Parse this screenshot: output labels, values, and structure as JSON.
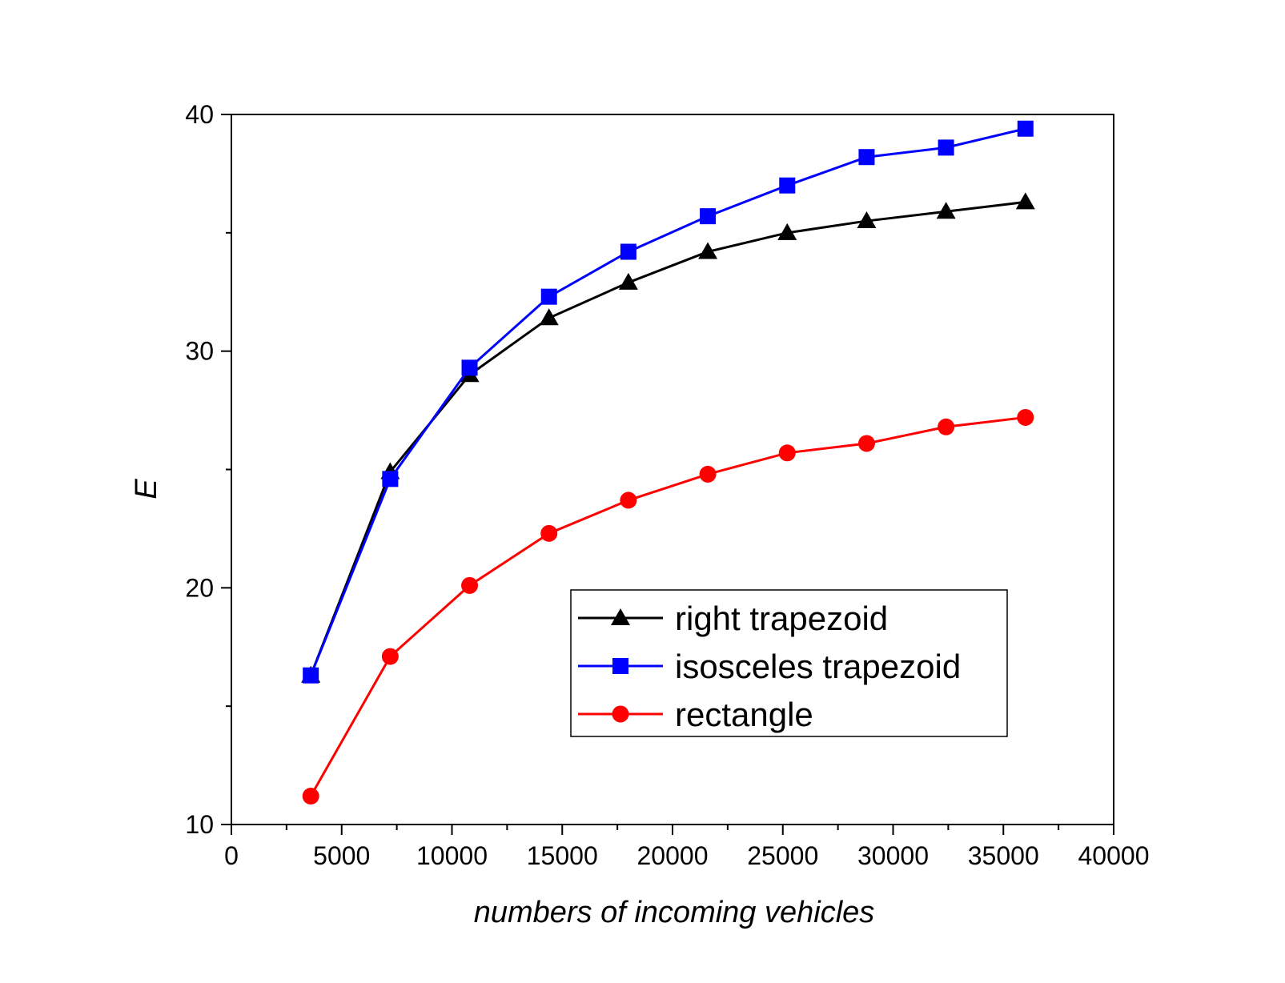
{
  "chart_data": {
    "type": "line",
    "title": "",
    "xlabel": "numbers of incoming vehicles",
    "ylabel": "E",
    "xlim": [
      0,
      40000
    ],
    "ylim": [
      10,
      40
    ],
    "x_ticks": [
      "0",
      "5000",
      "10000",
      "15000",
      "20000",
      "25000",
      "30000",
      "35000",
      "40000"
    ],
    "y_ticks": [
      "10",
      "20",
      "30",
      "40"
    ],
    "grid": false,
    "legend_position": "lower-right",
    "x": [
      3600,
      7200,
      10800,
      14400,
      18000,
      21600,
      25200,
      28800,
      32400,
      36000
    ],
    "series": [
      {
        "name": "right trapezoid",
        "color": "#000000",
        "marker": "triangle",
        "values": [
          16.3,
          24.9,
          29.0,
          31.4,
          32.9,
          34.2,
          35.0,
          35.5,
          35.9,
          36.3
        ]
      },
      {
        "name": "isosceles trapezoid",
        "color": "#0000ff",
        "marker": "square",
        "values": [
          16.3,
          24.6,
          29.3,
          32.3,
          34.2,
          35.7,
          37.0,
          38.2,
          38.6,
          39.4
        ]
      },
      {
        "name": "rectangle",
        "color": "#ff0000",
        "marker": "circle",
        "values": [
          11.2,
          17.1,
          20.1,
          22.3,
          23.7,
          24.8,
          25.7,
          26.1,
          26.8,
          27.2
        ]
      }
    ]
  }
}
